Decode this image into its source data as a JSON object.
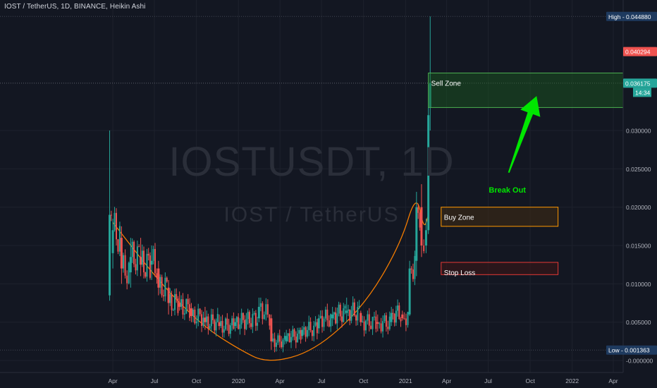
{
  "header": {
    "symbol_title": "IOST / TetherUS, 1D, BINANCE, Heikin Ashi"
  },
  "watermark": {
    "ticker": "IOSTUSDT, 1D",
    "pair": "IOST / TetherUS"
  },
  "colors": {
    "background": "#131722",
    "up": "#26a69a",
    "down": "#ef5350",
    "cup_curve": "#f57c00",
    "sell_zone_fill": "#1b5e20",
    "sell_zone_border": "#4caf50",
    "buy_zone_border": "#ff9800",
    "stop_loss_border": "#e53935",
    "arrow": "#00e600",
    "axis_text": "#b2b5be"
  },
  "price_axis": {
    "ticks": [
      "0.030000",
      "0.025000",
      "0.020000",
      "0.015000",
      "0.010000",
      "0.005000",
      "-0.000000"
    ],
    "badges": {
      "high": "High - 0.044880",
      "last": "0.040294",
      "current": "0.036175",
      "countdown": "14:34",
      "low": "Low - 0.001363"
    }
  },
  "time_axis": {
    "labels": [
      "Apr",
      "Jul",
      "Oct",
      "2020",
      "Apr",
      "Jul",
      "Oct",
      "2021",
      "Apr",
      "Jul",
      "Oct",
      "2022",
      "Apr"
    ]
  },
  "annotations": {
    "sell_zone": "Sell Zone",
    "buy_zone": "Buy Zone",
    "stop_loss": "Stop Loss",
    "break_out": "Break Out"
  },
  "chart_data": {
    "type": "candlestick",
    "title": "IOST / TetherUS, 1D, BINANCE, Heikin Ashi",
    "x_range": [
      "2019-03",
      "2022-04"
    ],
    "ylim": [
      -0.0005,
      0.0465
    ],
    "high": 0.04488,
    "low": 0.001363,
    "last_price": 0.040294,
    "current_price": 0.036175,
    "series": [
      {
        "name": "IOST/USDT",
        "points": [
          {
            "date": "2019-03-25",
            "open": 0.0085,
            "high": 0.03,
            "low": 0.0078,
            "close": 0.019
          },
          {
            "date": "2019-04-01",
            "open": 0.014,
            "high": 0.0185,
            "low": 0.012,
            "close": 0.017
          },
          {
            "date": "2019-04-20",
            "open": 0.016,
            "high": 0.0175,
            "low": 0.01,
            "close": 0.012
          },
          {
            "date": "2019-05-10",
            "open": 0.0115,
            "high": 0.016,
            "low": 0.0095,
            "close": 0.0135
          },
          {
            "date": "2019-06-01",
            "open": 0.0135,
            "high": 0.016,
            "low": 0.011,
            "close": 0.0125
          },
          {
            "date": "2019-06-25",
            "open": 0.0125,
            "high": 0.015,
            "low": 0.0105,
            "close": 0.013
          },
          {
            "date": "2019-07-10",
            "open": 0.012,
            "high": 0.013,
            "low": 0.0085,
            "close": 0.0095
          },
          {
            "date": "2019-08-01",
            "open": 0.0095,
            "high": 0.0105,
            "low": 0.006,
            "close": 0.0075
          },
          {
            "date": "2019-08-25",
            "open": 0.0075,
            "high": 0.009,
            "low": 0.0065,
            "close": 0.007
          },
          {
            "date": "2019-09-20",
            "open": 0.0068,
            "high": 0.0075,
            "low": 0.005,
            "close": 0.0058
          },
          {
            "date": "2019-10-20",
            "open": 0.0056,
            "high": 0.007,
            "low": 0.004,
            "close": 0.005
          },
          {
            "date": "2019-11-20",
            "open": 0.005,
            "high": 0.006,
            "low": 0.004,
            "close": 0.0045
          },
          {
            "date": "2019-12-25",
            "open": 0.0045,
            "high": 0.0055,
            "low": 0.0038,
            "close": 0.005
          },
          {
            "date": "2020-02-15",
            "open": 0.0055,
            "high": 0.0082,
            "low": 0.005,
            "close": 0.007
          },
          {
            "date": "2020-03-13",
            "open": 0.0055,
            "high": 0.006,
            "low": 0.0014,
            "close": 0.0025
          },
          {
            "date": "2020-04-15",
            "open": 0.0025,
            "high": 0.004,
            "low": 0.0022,
            "close": 0.0032
          },
          {
            "date": "2020-05-20",
            "open": 0.0032,
            "high": 0.0045,
            "low": 0.0028,
            "close": 0.004
          },
          {
            "date": "2020-06-25",
            "open": 0.0042,
            "high": 0.006,
            "low": 0.0035,
            "close": 0.0055
          },
          {
            "date": "2020-07-25",
            "open": 0.0055,
            "high": 0.007,
            "low": 0.0045,
            "close": 0.006
          },
          {
            "date": "2020-08-25",
            "open": 0.0062,
            "high": 0.0082,
            "low": 0.005,
            "close": 0.0065
          },
          {
            "date": "2020-09-25",
            "open": 0.0062,
            "high": 0.0065,
            "low": 0.0045,
            "close": 0.005
          },
          {
            "date": "2020-11-01",
            "open": 0.005,
            "high": 0.006,
            "low": 0.0038,
            "close": 0.0048
          },
          {
            "date": "2020-12-01",
            "open": 0.005,
            "high": 0.007,
            "low": 0.0045,
            "close": 0.0062
          },
          {
            "date": "2020-12-25",
            "open": 0.006,
            "high": 0.0065,
            "low": 0.0052,
            "close": 0.0055
          },
          {
            "date": "2021-01-10",
            "open": 0.006,
            "high": 0.013,
            "low": 0.0058,
            "close": 0.012
          },
          {
            "date": "2021-01-25",
            "open": 0.013,
            "high": 0.022,
            "low": 0.011,
            "close": 0.02
          },
          {
            "date": "2021-02-05",
            "open": 0.02,
            "high": 0.023,
            "low": 0.0135,
            "close": 0.015
          },
          {
            "date": "2021-02-15",
            "open": 0.015,
            "high": 0.0185,
            "low": 0.014,
            "close": 0.017
          },
          {
            "date": "2021-02-20",
            "open": 0.017,
            "high": 0.036,
            "low": 0.0165,
            "close": 0.032
          },
          {
            "date": "2021-02-24",
            "open": 0.033,
            "high": 0.04488,
            "low": 0.03,
            "close": 0.0362
          }
        ]
      }
    ],
    "cup_curve": [
      {
        "date": "2019-04-01",
        "price": 0.018
      },
      {
        "date": "2019-07-15",
        "price": 0.01
      },
      {
        "date": "2019-10-15",
        "price": 0.0045
      },
      {
        "date": "2020-01-01",
        "price": 0.0015
      },
      {
        "date": "2020-03-05",
        "price": -0.0004
      },
      {
        "date": "2020-06-15",
        "price": 0.0012
      },
      {
        "date": "2020-10-01",
        "price": 0.007
      },
      {
        "date": "2020-12-20",
        "price": 0.015
      },
      {
        "date": "2021-01-25",
        "price": 0.022
      },
      {
        "date": "2021-02-10",
        "price": 0.017
      },
      {
        "date": "2021-02-20",
        "price": 0.019
      }
    ],
    "zones": [
      {
        "label": "Sell Zone",
        "from": "2021-02-20",
        "to": "2022-05",
        "top": 0.0375,
        "bottom": 0.033
      },
      {
        "label": "Buy Zone",
        "from": "2021-03-20",
        "to": "2021-12",
        "top": 0.02,
        "bottom": 0.0175
      },
      {
        "label": "Stop Loss",
        "from": "2021-03-20",
        "to": "2021-12",
        "top": 0.0128,
        "bottom": 0.0112
      }
    ],
    "arrow": {
      "label": "Break Out",
      "from": {
        "date": "2021-08-15",
        "price": 0.0245
      },
      "to": {
        "date": "2021-10-15",
        "price": 0.0345
      }
    }
  }
}
